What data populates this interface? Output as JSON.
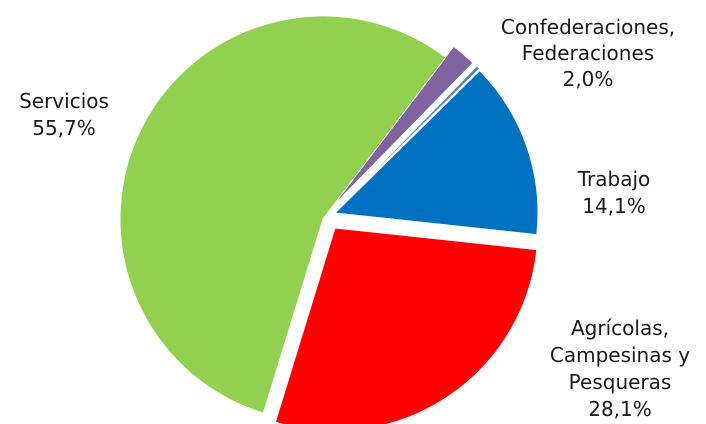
{
  "chart_data": {
    "type": "pie",
    "title": "",
    "slices": [
      {
        "label": [
          "Confederaciones,",
          "Federaciones"
        ],
        "value_text": "2,0%",
        "value": 2.0,
        "color": "#8064A2"
      },
      {
        "label": [],
        "value_text": "",
        "value": 0.3,
        "color": "#4F81BD"
      },
      {
        "label": [
          "Trabajo"
        ],
        "value_text": "14,1%",
        "value": 14.1,
        "color": "#0070C0"
      },
      {
        "label": [
          "Agrícolas,",
          "Campesinas y",
          "Pesqueras"
        ],
        "value_text": "28,1%",
        "value": 28.1,
        "color": "#FF0000"
      },
      {
        "label": [
          "Servicios"
        ],
        "value_text": "55,7%",
        "value": 55.7,
        "color": "#92D050"
      }
    ],
    "legend": "none"
  }
}
